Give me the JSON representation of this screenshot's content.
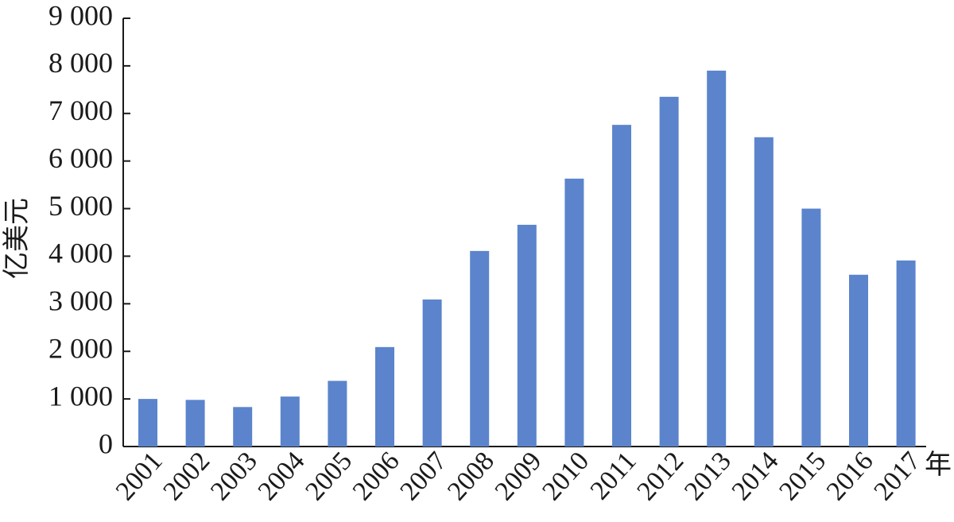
{
  "chart_data": {
    "type": "bar",
    "y_label": "亿美元",
    "x_label": "年",
    "categories": [
      "2001",
      "2002",
      "2003",
      "2004",
      "2005",
      "2006",
      "2007",
      "2008",
      "2009",
      "2010",
      "2011",
      "2012",
      "2013",
      "2014",
      "2015",
      "2016",
      "2017"
    ],
    "values": [
      1000,
      980,
      830,
      1050,
      1380,
      2090,
      3090,
      4110,
      4660,
      5630,
      6760,
      7350,
      7900,
      6500,
      5000,
      3610,
      3910
    ],
    "color": "#5b84cc",
    "ylim": [
      0,
      9000
    ],
    "yticks": [
      0,
      {
        "value": 1000,
        "label": "1 000"
      },
      {
        "value": 2000,
        "label": "2 000"
      },
      {
        "value": 3000,
        "label": "3 000"
      },
      {
        "value": 4000,
        "label": "4 000"
      },
      {
        "value": 5000,
        "label": "5 000"
      },
      {
        "value": 6000,
        "label": "6 000"
      },
      {
        "value": 7000,
        "label": "7 000"
      },
      {
        "value": 8000,
        "label": "8 000"
      },
      {
        "value": 9000,
        "label": "9 000"
      }
    ],
    "grid": false
  }
}
